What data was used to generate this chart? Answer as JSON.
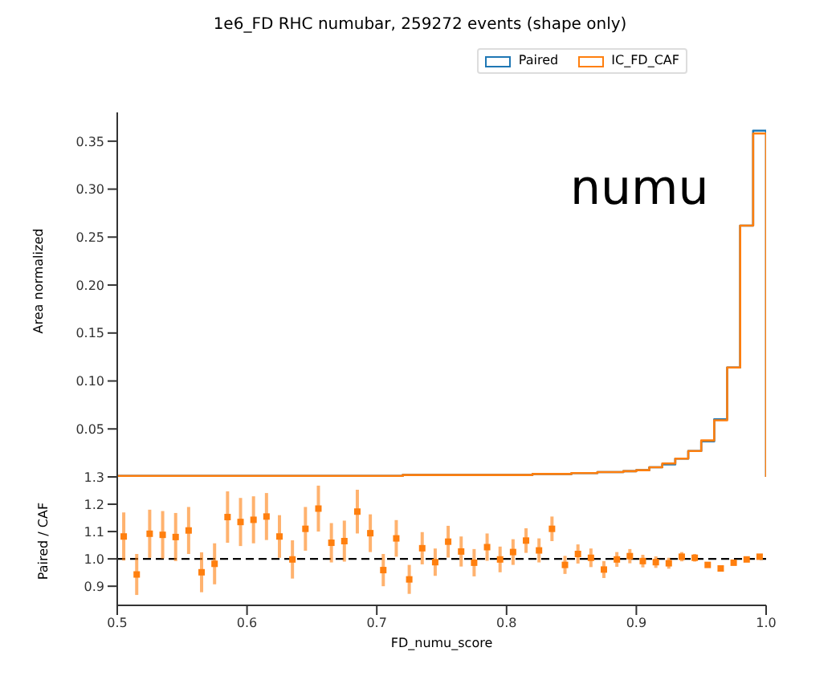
{
  "chart_data": [
    {
      "type": "histogram",
      "title": "1e6_FD RHC numubar, 259272 events (shape only)",
      "ylabel": "Area normalized",
      "legend": "top right",
      "tick_labels": "y",
      "annotations": [
        "numu"
      ],
      "bins": [
        0.5,
        0.51,
        0.52,
        0.53,
        0.54,
        0.55,
        0.56,
        0.57,
        0.58,
        0.59,
        0.6,
        0.61,
        0.62,
        0.63,
        0.64,
        0.65,
        0.66,
        0.67,
        0.68,
        0.69,
        0.7,
        0.71,
        0.72,
        0.73,
        0.74,
        0.75,
        0.76,
        0.77,
        0.78,
        0.79,
        0.8,
        0.81,
        0.82,
        0.83,
        0.84,
        0.85,
        0.86,
        0.87,
        0.88,
        0.89,
        0.9,
        0.91,
        0.92,
        0.93,
        0.94,
        0.95,
        0.96,
        0.97,
        0.98,
        0.99,
        1.0
      ],
      "xlim": [
        0.5,
        1.0
      ],
      "ylim": [
        0,
        0.38
      ],
      "yticks": [
        0.05,
        {
          "value": 0.1,
          "label": "0.10"
        },
        0.15,
        {
          "value": 0.2,
          "label": "0.20"
        },
        0.25,
        {
          "value": 0.3,
          "label": "0.30"
        },
        0.35
      ],
      "series": [
        {
          "name": "Paired",
          "color": "#1f77b4",
          "values": [
            0.001,
            0.001,
            0.001,
            0.001,
            0.001,
            0.001,
            0.001,
            0.001,
            0.001,
            0.001,
            0.001,
            0.001,
            0.001,
            0.001,
            0.001,
            0.001,
            0.001,
            0.001,
            0.001,
            0.001,
            0.001,
            0.001,
            0.002,
            0.002,
            0.002,
            0.002,
            0.002,
            0.002,
            0.002,
            0.002,
            0.002,
            0.002,
            0.003,
            0.003,
            0.003,
            0.004,
            0.004,
            0.005,
            0.005,
            0.006,
            0.007,
            0.01,
            0.013,
            0.019,
            0.027,
            0.037,
            0.06,
            0.114,
            0.262,
            0.361
          ]
        },
        {
          "name": "IC_FD_CAF",
          "color": "#ff7f0e",
          "values": [
            0.001,
            0.001,
            0.001,
            0.001,
            0.001,
            0.001,
            0.001,
            0.001,
            0.001,
            0.001,
            0.001,
            0.001,
            0.001,
            0.001,
            0.001,
            0.001,
            0.001,
            0.001,
            0.001,
            0.001,
            0.001,
            0.001,
            0.002,
            0.002,
            0.002,
            0.002,
            0.002,
            0.002,
            0.002,
            0.002,
            0.002,
            0.002,
            0.003,
            0.003,
            0.003,
            0.004,
            0.004,
            0.005,
            0.005,
            0.006,
            0.007,
            0.01,
            0.014,
            0.019,
            0.027,
            0.038,
            0.059,
            0.114,
            0.262,
            0.358
          ]
        }
      ]
    },
    {
      "type": "scatter",
      "xlabel": "FD_numu_score",
      "ylabel": "Paired / CAF",
      "marker": "square",
      "xlim": [
        0.5,
        1.0
      ],
      "xticks": [
        0.5,
        0.6,
        0.7,
        0.8,
        0.9,
        {
          "value": 1.0,
          "label": "1.0"
        }
      ],
      "ylim": [
        0.83,
        1.3
      ],
      "yticks": [
        0.9,
        {
          "value": 1.0,
          "label": "1.0"
        },
        1.1,
        1.2,
        1.3
      ],
      "ref_lines": [
        {
          "axis": "y",
          "value": 1.0,
          "color": "#000000",
          "line_style": "dashed"
        }
      ],
      "series": [
        {
          "color": "#ff7f0e",
          "x": [
            0.505,
            0.515,
            0.525,
            0.535,
            0.545,
            0.555,
            0.565,
            0.575,
            0.585,
            0.595,
            0.605,
            0.615,
            0.625,
            0.635,
            0.645,
            0.655,
            0.665,
            0.675,
            0.685,
            0.695,
            0.705,
            0.715,
            0.725,
            0.735,
            0.745,
            0.755,
            0.765,
            0.775,
            0.785,
            0.795,
            0.805,
            0.815,
            0.825,
            0.835,
            0.845,
            0.855,
            0.865,
            0.875,
            0.885,
            0.895,
            0.905,
            0.915,
            0.925,
            0.935,
            0.945,
            0.955,
            0.965,
            0.975,
            0.985,
            0.995
          ],
          "values": [
            1.082,
            0.943,
            1.092,
            1.088,
            1.08,
            1.104,
            0.951,
            0.982,
            1.153,
            1.135,
            1.143,
            1.155,
            1.082,
            0.998,
            1.11,
            1.184,
            1.059,
            1.065,
            1.173,
            1.094,
            0.959,
            1.075,
            0.925,
            1.039,
            0.988,
            1.063,
            1.027,
            0.986,
            1.043,
            0.998,
            1.025,
            1.067,
            1.031,
            1.11,
            0.978,
            1.018,
            1.004,
            0.961,
            0.998,
            1.01,
            0.992,
            0.988,
            0.984,
            1.008,
            1.004,
            0.978,
            0.965,
            0.986,
            0.998,
            1.008
          ],
          "errors": [
            0.088,
            0.075,
            0.088,
            0.087,
            0.088,
            0.086,
            0.073,
            0.075,
            0.094,
            0.088,
            0.086,
            0.086,
            0.078,
            0.07,
            0.08,
            0.084,
            0.072,
            0.075,
            0.08,
            0.069,
            0.059,
            0.067,
            0.053,
            0.059,
            0.05,
            0.058,
            0.055,
            0.05,
            0.05,
            0.047,
            0.047,
            0.045,
            0.044,
            0.045,
            0.033,
            0.035,
            0.034,
            0.031,
            0.027,
            0.026,
            0.023,
            0.021,
            0.02,
            0.017,
            0.014,
            0.01,
            0.008,
            0.005,
            0.004,
            0.003
          ]
        }
      ]
    }
  ]
}
